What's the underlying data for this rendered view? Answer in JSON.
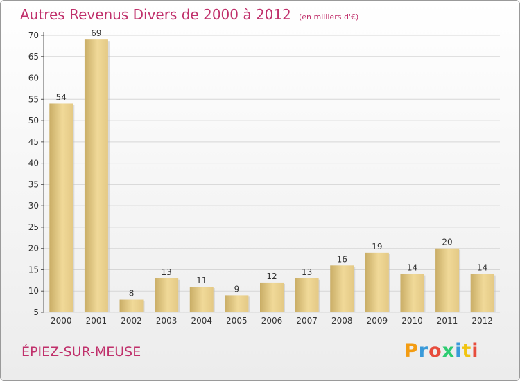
{
  "title": "Autres Revenus Divers de 2000 à 2012",
  "unit": "(en milliers d'€)",
  "commune": "ÉPIEZ-SUR-MEUSE",
  "logo": {
    "letters": [
      "P",
      "r",
      "o",
      "x",
      "i",
      "t",
      "i"
    ],
    "colors": [
      "#f39c12",
      "#3a9ad9",
      "#e74c3c",
      "#2ecc71",
      "#3a9ad9",
      "#f1c40f",
      "#e74c3c"
    ]
  },
  "chart_data": {
    "type": "bar",
    "categories": [
      "2000",
      "2001",
      "2002",
      "2003",
      "2004",
      "2005",
      "2006",
      "2007",
      "2008",
      "2009",
      "2010",
      "2011",
      "2012"
    ],
    "values": [
      54,
      69,
      8,
      13,
      11,
      9,
      12,
      13,
      16,
      19,
      14,
      20,
      14
    ],
    "ylim": [
      5,
      70
    ],
    "yticks": [
      5,
      10,
      15,
      20,
      25,
      30,
      35,
      40,
      45,
      50,
      55,
      60,
      65,
      70
    ],
    "grid": true,
    "bar_color": "#e8cd86"
  }
}
